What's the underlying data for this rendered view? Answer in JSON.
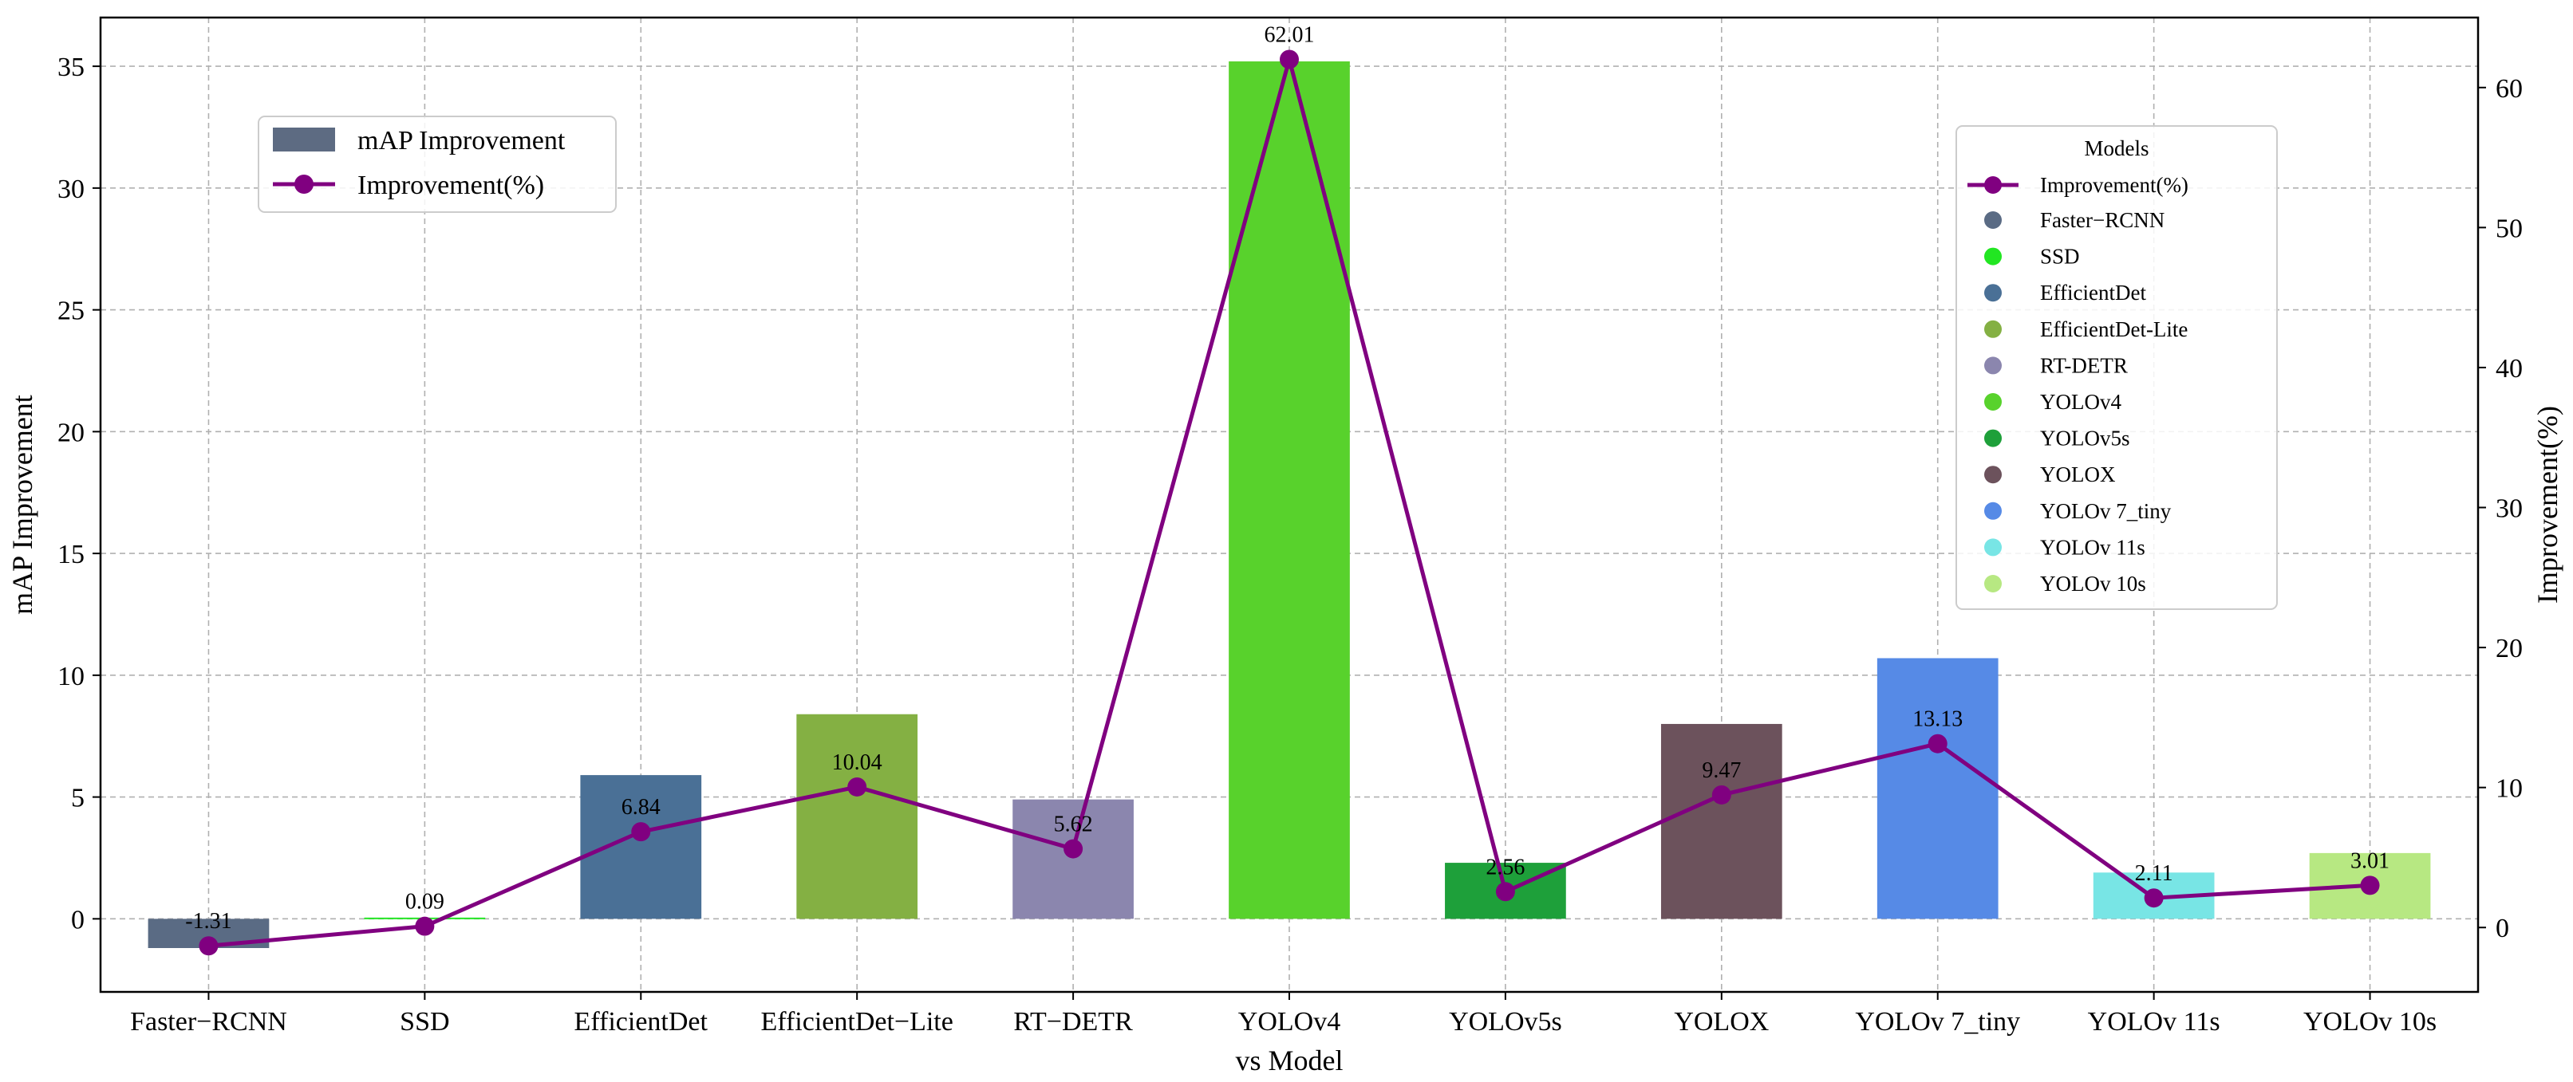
{
  "chart_data": {
    "type": "bar+line",
    "xlabel": "vs Model",
    "ylabel_left": "mAP Improvement",
    "ylabel_right": "Improvement(%)",
    "ylim_left": [
      -3,
      37
    ],
    "ylim_right": [
      -4.6,
      65
    ],
    "yticks_left": [
      0,
      5,
      10,
      15,
      20,
      25,
      30,
      35
    ],
    "yticks_right": [
      0,
      10,
      20,
      30,
      40,
      50,
      60
    ],
    "grid": true,
    "categories": [
      "Faster−RCNN",
      "SSD",
      "EfficientDet",
      "EfficientDet−Lite",
      "RT−DETR",
      "YOLOv4",
      "YOLOv5s",
      "YOLOX",
      "YOLOv 7_tiny",
      "YOLOv 11s",
      "YOLOv 10s"
    ],
    "bar_values": [
      -1.2,
      0.05,
      5.9,
      8.4,
      4.9,
      35.2,
      2.3,
      8.0,
      10.7,
      1.9,
      2.7
    ],
    "bar_colors": [
      "#5a6b84",
      "#22e622",
      "#4a7096",
      "#84b043",
      "#8b86ae",
      "#58d22c",
      "#1ea03a",
      "#6c525c",
      "#568ae6",
      "#78e5e5",
      "#b7e882"
    ],
    "line_values": [
      -1.31,
      0.09,
      6.84,
      10.04,
      5.62,
      62.01,
      2.56,
      9.47,
      13.13,
      2.11,
      3.01
    ],
    "line_labels": [
      "-1.31",
      "0.09",
      "6.84",
      "10.04",
      "5.62",
      "62.01",
      "2.56",
      "9.47",
      "13.13",
      "2.11",
      "3.01"
    ],
    "line_color": "#800080",
    "legend_main": {
      "position": "top-left",
      "items": [
        "mAP Improvement",
        "Improvement(%)"
      ],
      "bar_swatch_color": "#5d6b82"
    },
    "legend_models": {
      "position": "top-right",
      "title": "Models",
      "line_item": "Improvement(%)",
      "items": [
        "Faster−RCNN",
        "SSD",
        "EfficientDet",
        "EfficientDet-Lite",
        "RT-DETR",
        "YOLOv4",
        "YOLOv5s",
        "YOLOX",
        "YOLOv 7_tiny",
        "YOLOv 11s",
        "YOLOv 10s"
      ]
    }
  }
}
